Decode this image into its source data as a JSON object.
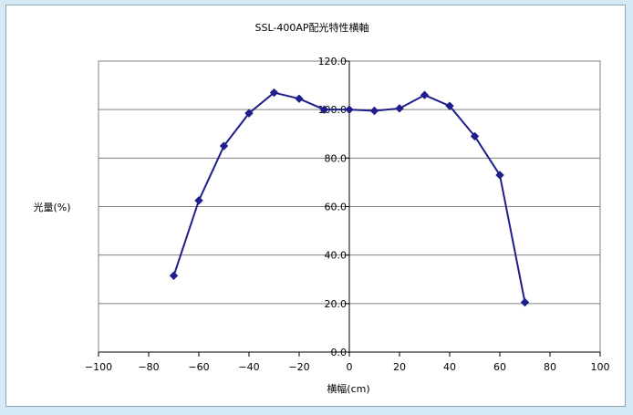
{
  "chart_data": {
    "type": "scatter",
    "title": "SSL-400AP配光特性横軸",
    "xlabel": "横幅(cm)",
    "ylabel": "光量(%)",
    "xlim": [
      -100,
      100
    ],
    "ylim": [
      0,
      120
    ],
    "x_ticks": [
      -100,
      -80,
      -60,
      -40,
      -20,
      0,
      20,
      40,
      60,
      80,
      100
    ],
    "x_tick_labels": [
      "−100",
      "−80",
      "−60",
      "−40",
      "−20",
      "0",
      "20",
      "40",
      "60",
      "80",
      "100"
    ],
    "y_ticks": [
      0,
      20,
      40,
      60,
      80,
      100,
      120
    ],
    "y_tick_labels": [
      "0.0",
      "20.0",
      "40.0",
      "60.0",
      "80.0",
      "100.0",
      "120.0"
    ],
    "grid": "horizontal",
    "legend": "none",
    "series": [
      {
        "x": [
          -70,
          -60,
          -50,
          -40,
          -30,
          -20,
          -10,
          0,
          10,
          20,
          30,
          40,
          50,
          60,
          70
        ],
        "values": [
          31.5,
          62.5,
          85.0,
          98.5,
          107.0,
          104.5,
          100.0,
          100.0,
          99.5,
          100.5,
          106.0,
          101.5,
          89.0,
          73.0,
          20.5
        ],
        "color": "#1f1f8c",
        "marker": "diamond"
      }
    ]
  }
}
